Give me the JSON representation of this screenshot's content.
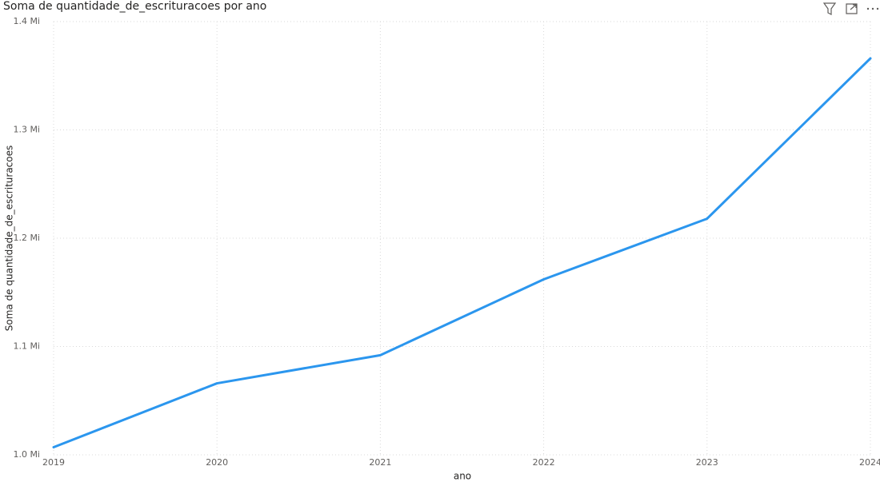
{
  "chart_data": {
    "type": "line",
    "title": "Soma de quantidade_de_escrituracoes por ano",
    "x_label": "ano",
    "y_label": "Soma de quantidade_de_escrituracoes",
    "x": [
      2019,
      2020,
      2021,
      2022,
      2023,
      2024
    ],
    "series": [
      {
        "name": "Soma de quantidade_de_escrituracoes",
        "color": "#2b96ee",
        "values": [
          1007000,
          1066000,
          1092000,
          1162000,
          1218000,
          1366000
        ]
      }
    ],
    "xlim": [
      2019,
      2024
    ],
    "xticks": [
      2019,
      2020,
      2021,
      2022,
      2023,
      2024
    ],
    "ylim": [
      1000000,
      1400000
    ],
    "yticks": [
      {
        "value": 1000000,
        "label": "1.0 Mi"
      },
      {
        "value": 1100000,
        "label": "1.1 Mi"
      },
      {
        "value": 1200000,
        "label": "1.2 Mi"
      },
      {
        "value": 1300000,
        "label": "1.3 Mi"
      },
      {
        "value": 1400000,
        "label": "1.4 Mi"
      }
    ],
    "grid": true
  }
}
